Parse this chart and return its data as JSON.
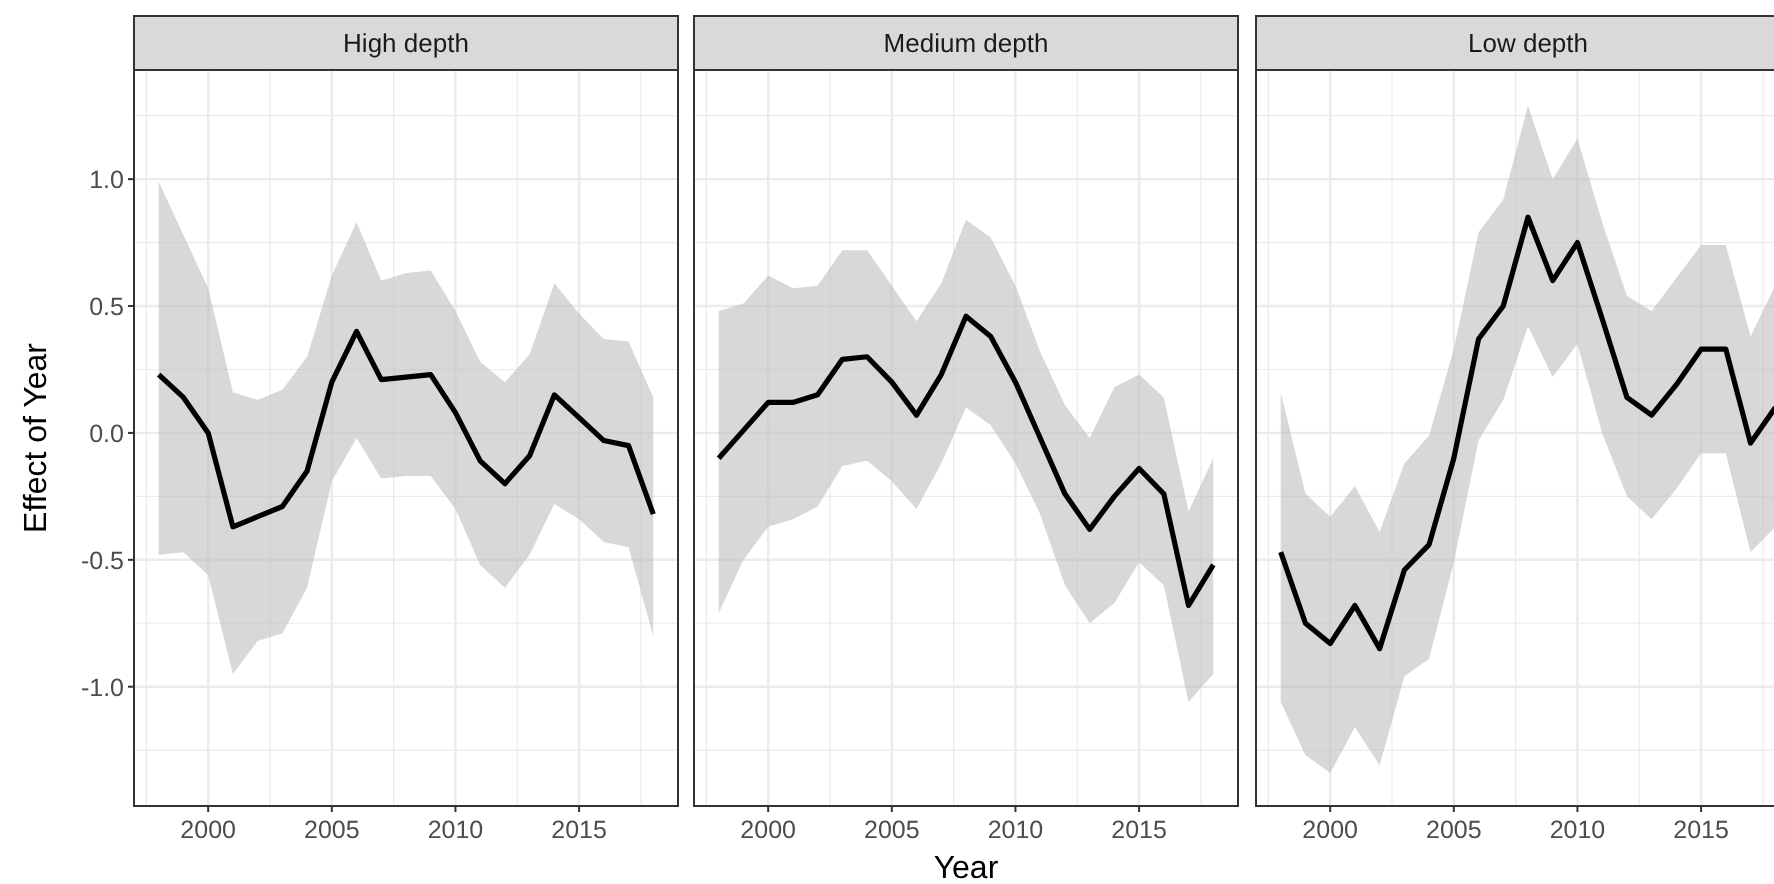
{
  "chart_data": [
    {
      "type": "line",
      "title": "High depth",
      "ylabel": "Effect of Year",
      "x": [
        1998,
        1999,
        2000,
        2001,
        2002,
        2003,
        2004,
        2005,
        2006,
        2007,
        2008,
        2009,
        2010,
        2011,
        2012,
        2013,
        2014,
        2015,
        2016,
        2017,
        2018
      ],
      "series": [
        {
          "color": "#000000",
          "values": [
            0.23,
            0.14,
            0.0,
            -0.37,
            -0.33,
            -0.29,
            -0.15,
            0.2,
            0.4,
            0.21,
            0.22,
            0.23,
            0.08,
            -0.11,
            -0.2,
            -0.09,
            0.15,
            0.06,
            -0.03,
            -0.05,
            -0.32
          ],
          "lower": [
            -0.48,
            -0.47,
            -0.56,
            -0.95,
            -0.82,
            -0.79,
            -0.61,
            -0.19,
            -0.02,
            -0.18,
            -0.17,
            -0.17,
            -0.3,
            -0.52,
            -0.61,
            -0.48,
            -0.28,
            -0.34,
            -0.43,
            -0.45,
            -0.8
          ],
          "upper": [
            0.99,
            0.78,
            0.57,
            0.16,
            0.13,
            0.17,
            0.3,
            0.62,
            0.83,
            0.6,
            0.63,
            0.64,
            0.48,
            0.28,
            0.2,
            0.31,
            0.59,
            0.47,
            0.37,
            0.36,
            0.14
          ]
        }
      ],
      "xlim": [
        1997,
        2019
      ],
      "ylim": [
        -1.47,
        1.43
      ],
      "xticks": [
        2000,
        2005,
        2010,
        2015
      ],
      "yticks": [
        {
          "value": -1,
          "label": "-1.0"
        },
        -0.5,
        {
          "value": 0,
          "label": "0.0"
        },
        0.5,
        {
          "value": 1,
          "label": "1.0"
        }
      ],
      "grid": true
    },
    {
      "type": "line",
      "title": "Medium depth",
      "xlabel": "Year",
      "x": [
        1998,
        1999,
        2000,
        2001,
        2002,
        2003,
        2004,
        2005,
        2006,
        2007,
        2008,
        2009,
        2010,
        2011,
        2012,
        2013,
        2014,
        2015,
        2016,
        2017,
        2018
      ],
      "series": [
        {
          "color": "#000000",
          "values": [
            -0.1,
            0.01,
            0.12,
            0.12,
            0.15,
            0.29,
            0.3,
            0.2,
            0.07,
            0.23,
            0.46,
            0.38,
            0.2,
            -0.02,
            -0.24,
            -0.38,
            -0.25,
            -0.14,
            -0.24,
            -0.68,
            -0.52
          ],
          "lower": [
            -0.71,
            -0.5,
            -0.37,
            -0.34,
            -0.29,
            -0.13,
            -0.11,
            -0.19,
            -0.3,
            -0.12,
            0.1,
            0.03,
            -0.12,
            -0.32,
            -0.6,
            -0.75,
            -0.67,
            -0.51,
            -0.6,
            -1.06,
            -0.95
          ],
          "upper": [
            0.48,
            0.51,
            0.62,
            0.57,
            0.58,
            0.72,
            0.72,
            0.58,
            0.44,
            0.59,
            0.84,
            0.77,
            0.58,
            0.32,
            0.11,
            -0.02,
            0.18,
            0.23,
            0.14,
            -0.31,
            -0.1
          ]
        }
      ],
      "xlim": [
        1997,
        2019
      ],
      "ylim": [
        -1.47,
        1.43
      ],
      "xticks": [
        2000,
        2005,
        2010,
        2015
      ],
      "yticks": [
        -1,
        -0.5,
        0,
        0.5,
        1
      ],
      "grid": true,
      "tick_labels": "x"
    },
    {
      "type": "line",
      "title": "Low depth",
      "x": [
        1998,
        1999,
        2000,
        2001,
        2002,
        2003,
        2004,
        2005,
        2006,
        2007,
        2008,
        2009,
        2010,
        2011,
        2012,
        2013,
        2014,
        2015,
        2016,
        2017,
        2018
      ],
      "series": [
        {
          "color": "#000000",
          "values": [
            -0.47,
            -0.75,
            -0.83,
            -0.68,
            -0.85,
            -0.54,
            -0.44,
            -0.1,
            0.37,
            0.5,
            0.85,
            0.6,
            0.75,
            0.45,
            0.14,
            0.07,
            0.19,
            0.33,
            0.33,
            -0.04,
            0.1
          ],
          "lower": [
            -1.06,
            -1.27,
            -1.34,
            -1.16,
            -1.31,
            -0.96,
            -0.89,
            -0.51,
            -0.03,
            0.13,
            0.42,
            0.22,
            0.35,
            0.0,
            -0.25,
            -0.34,
            -0.22,
            -0.08,
            -0.08,
            -0.47,
            -0.37
          ],
          "upper": [
            0.16,
            -0.24,
            -0.33,
            -0.21,
            -0.39,
            -0.12,
            -0.01,
            0.33,
            0.79,
            0.92,
            1.29,
            1.0,
            1.16,
            0.83,
            0.54,
            0.48,
            0.61,
            0.74,
            0.74,
            0.38,
            0.58
          ]
        }
      ],
      "xlim": [
        1997,
        2019
      ],
      "ylim": [
        -1.47,
        1.43
      ],
      "xticks": [
        2000,
        2005,
        2010,
        2015
      ],
      "yticks": [
        -1,
        -0.5,
        0,
        0.5,
        1
      ],
      "grid": true,
      "tick_labels": "x"
    }
  ]
}
